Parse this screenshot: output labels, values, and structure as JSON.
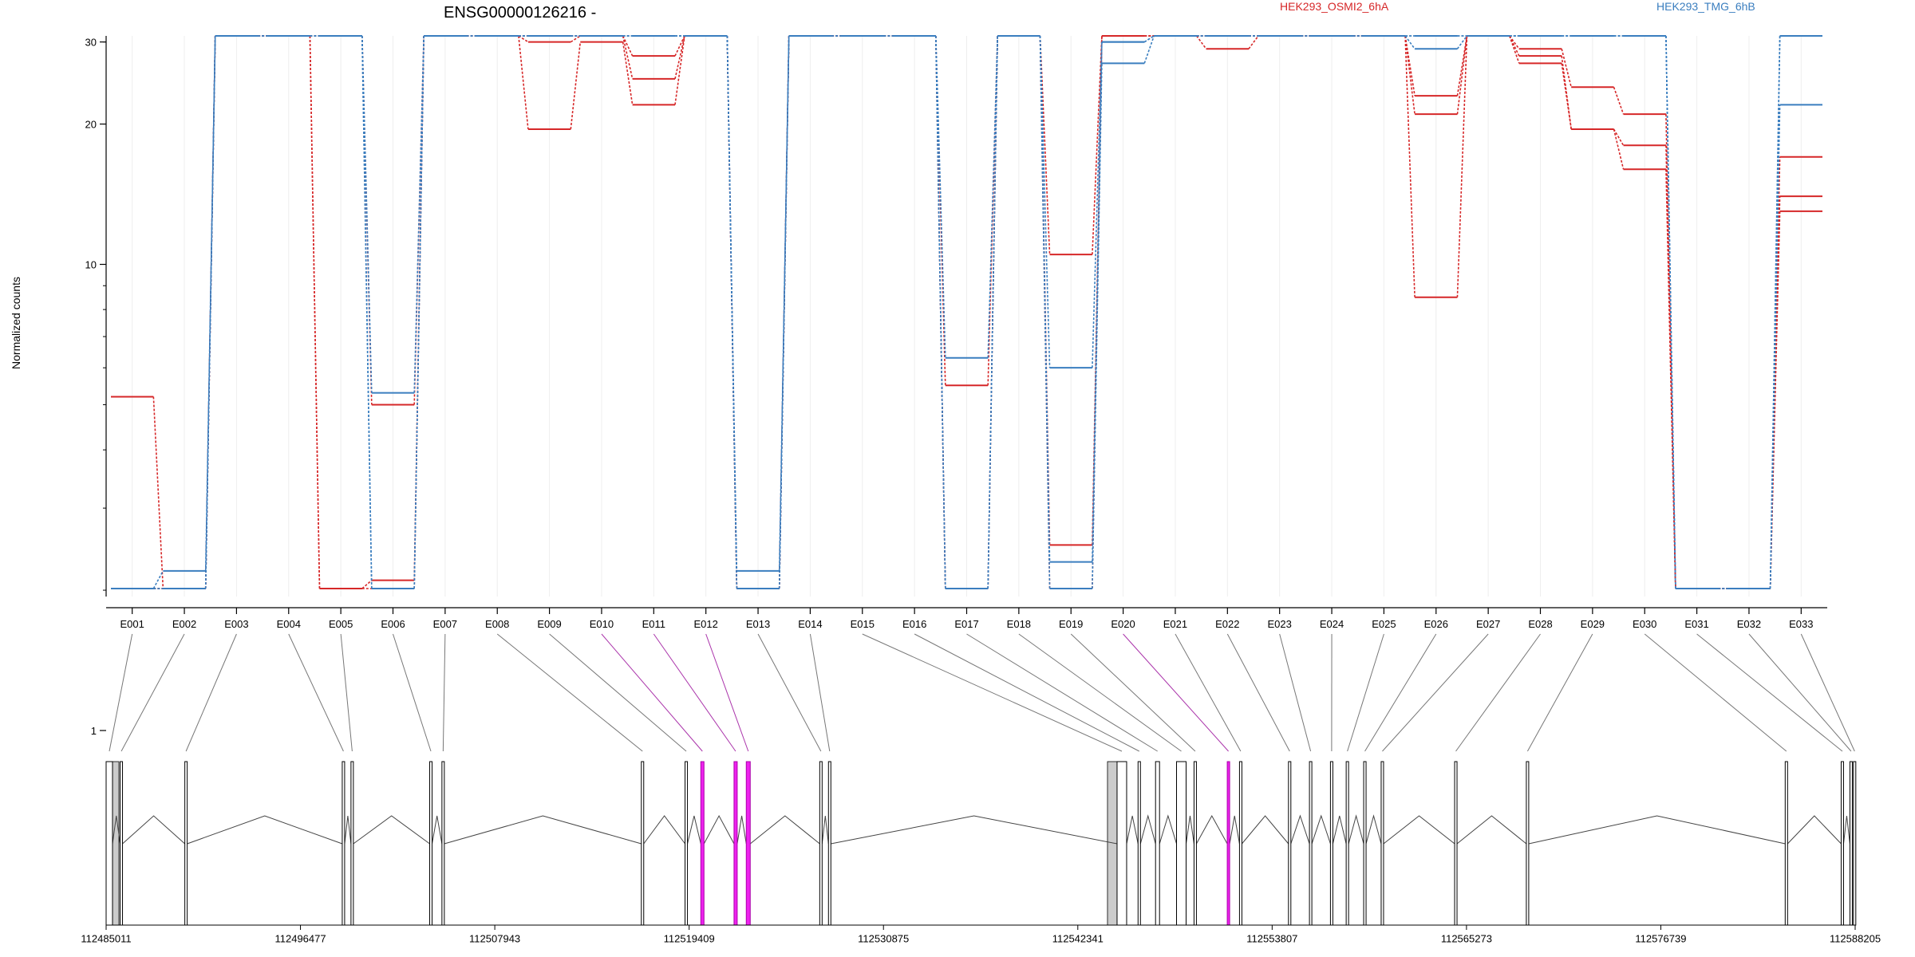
{
  "chart_data": {
    "type": "line",
    "title": "ENSG00000126216 -",
    "ylabel": "Normalized counts",
    "y_scale": "log",
    "ylim": [
      0.45,
      210
    ],
    "y_ticks": [
      1,
      10,
      20,
      30,
      50,
      100
    ],
    "grid": true,
    "colors": {
      "HEK293_OSMI2_6hA": "#d62728",
      "HEK293_TMG_6hB": "#3a7ebf"
    },
    "legend": [
      "HEK293_OSMI2_6hA",
      "HEK293_TMG_6hB"
    ],
    "legend_placement": "top-right",
    "exons": [
      "E001",
      "E002",
      "E003",
      "E004",
      "E005",
      "E006",
      "E007",
      "E008",
      "E009",
      "E010",
      "E011",
      "E012",
      "E013",
      "E014",
      "E015",
      "E016",
      "E017",
      "E018",
      "E019",
      "E020",
      "E021",
      "E022",
      "E023",
      "E024",
      "E025",
      "E026",
      "E027",
      "E028",
      "E029",
      "E030",
      "E031",
      "E032",
      "E033"
    ],
    "highlighted_exons": [
      "E010",
      "E011",
      "E012",
      "E020"
    ],
    "series": [
      {
        "group": "HEK293_OSMI2_6hA",
        "values": [
          5.2,
          1.3,
          58,
          48,
          1.0,
          1.1,
          42,
          33,
          19.5,
          30,
          22,
          34,
          0.45,
          42,
          40,
          38,
          0.45,
          44,
          0.45,
          44,
          48,
          29,
          42,
          45,
          40,
          8.5,
          38,
          28,
          19.5,
          16,
          1.1,
          0.45,
          13
        ]
      },
      {
        "group": "HEK293_OSMI2_6hA",
        "values": [
          1.0,
          0.45,
          65,
          63,
          0.45,
          2.1,
          45,
          40,
          30,
          40,
          25,
          40,
          2.0,
          50,
          44,
          42,
          1.6,
          45,
          2.5,
          70,
          48,
          31,
          50,
          58,
          55,
          21,
          55,
          27,
          19.5,
          18,
          0.45,
          0.45,
          14
        ]
      },
      {
        "group": "HEK293_OSMI2_6hA",
        "values": [
          0.45,
          0.45,
          103,
          65,
          40,
          5.0,
          50,
          43,
          40,
          42,
          28,
          41,
          0.45,
          51,
          48,
          44,
          5.5,
          46,
          10.5,
          72,
          56,
          37,
          60,
          62,
          64,
          23,
          62,
          29,
          24,
          21,
          0.45,
          0.45,
          17
        ]
      },
      {
        "group": "HEK293_TMG_6hB",
        "values": [
          0.9,
          2.2,
          105,
          125,
          82,
          1.6,
          92,
          85,
          52,
          99,
          78,
          103,
          0.95,
          120,
          96,
          88,
          1.5,
          104,
          0.95,
          27,
          92,
          57,
          90,
          90,
          108,
          29,
          85,
          50,
          35,
          40,
          0.45,
          0.45,
          22
        ]
      },
      {
        "group": "HEK293_TMG_6hB",
        "values": [
          0.95,
          0.45,
          128,
          130,
          92,
          1.8,
          100,
          90,
          50,
          103,
          80,
          105,
          2.2,
          123,
          97,
          106,
          1.4,
          112,
          2.3,
          30,
          100,
          63,
          92,
          104,
          116,
          31,
          86,
          55,
          38,
          48,
          0.45,
          0.45,
          32
        ]
      },
      {
        "group": "HEK293_TMG_6hB",
        "values": [
          1.0,
          0.45,
          170,
          132,
          100,
          5.3,
          104,
          92,
          78,
          105,
          83,
          105,
          0.45,
          125,
          115,
          121,
          6.3,
          136,
          6.0,
          30,
          122,
          66,
          95,
          115,
          132,
          34,
          115,
          68,
          43,
          48,
          0.45,
          0.45,
          38
        ]
      }
    ],
    "genome_axis": {
      "ticks": [
        "112485011",
        "112496477",
        "112507943",
        "112519409",
        "112530875",
        "112542341",
        "112553807",
        "112565273",
        "112576739",
        "112588205"
      ]
    }
  }
}
